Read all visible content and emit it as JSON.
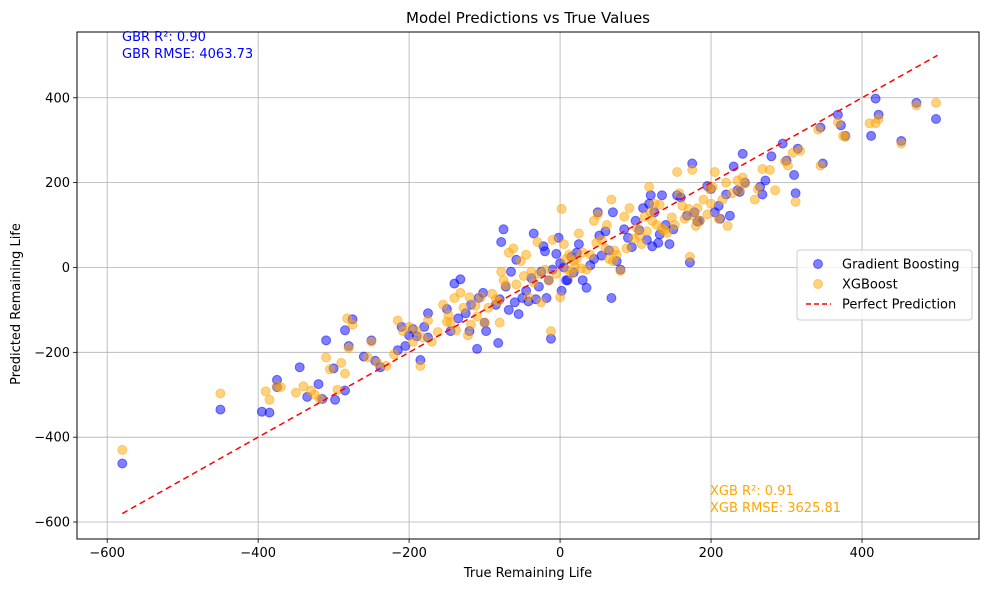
{
  "chart_data": {
    "type": "scatter",
    "title": "Model Predictions vs True Values",
    "xlabel": "True Remaining Life",
    "ylabel": "Predicted Remaining Life",
    "xlim": [
      -640,
      555
    ],
    "ylim": [
      -640,
      555
    ],
    "xticks": [
      -600,
      -400,
      -200,
      0,
      200,
      400
    ],
    "yticks": [
      -600,
      -400,
      -200,
      0,
      200,
      400
    ],
    "tick_labels": [
      "−600",
      "−400",
      "−200",
      "0",
      "200",
      "400"
    ],
    "grid": true,
    "legend_placement": "center-right",
    "series": [
      {
        "name": "Gradient Boosting",
        "color": "#0000ff",
        "points": [
          [
            -580,
            -462
          ],
          [
            -450,
            -335
          ],
          [
            -395,
            -340
          ],
          [
            -385,
            -342
          ],
          [
            -375,
            -265
          ],
          [
            -375,
            -282
          ],
          [
            -345,
            -235
          ],
          [
            -335,
            -305
          ],
          [
            -320,
            -275
          ],
          [
            -315,
            -310
          ],
          [
            -310,
            -172
          ],
          [
            -300,
            -238
          ],
          [
            -298,
            -312
          ],
          [
            -285,
            -290
          ],
          [
            -285,
            -148
          ],
          [
            -280,
            -185
          ],
          [
            -275,
            -122
          ],
          [
            -260,
            -210
          ],
          [
            -250,
            -172
          ],
          [
            -245,
            -220
          ],
          [
            -238,
            -235
          ],
          [
            -215,
            -195
          ],
          [
            -210,
            -140
          ],
          [
            -205,
            -185
          ],
          [
            -200,
            -160
          ],
          [
            -195,
            -145
          ],
          [
            -190,
            -162
          ],
          [
            -185,
            -218
          ],
          [
            -180,
            -140
          ],
          [
            -175,
            -165
          ],
          [
            -175,
            -108
          ],
          [
            -150,
            -98
          ],
          [
            -145,
            -150
          ],
          [
            -140,
            -38
          ],
          [
            -135,
            -120
          ],
          [
            -132,
            -28
          ],
          [
            -125,
            -108
          ],
          [
            -120,
            -150
          ],
          [
            -118,
            -88
          ],
          [
            -110,
            -192
          ],
          [
            -108,
            -72
          ],
          [
            -102,
            -60
          ],
          [
            -100,
            -130
          ],
          [
            -98,
            -150
          ],
          [
            -85,
            -88
          ],
          [
            -82,
            -178
          ],
          [
            -80,
            -75
          ],
          [
            -78,
            60
          ],
          [
            -75,
            90
          ],
          [
            -72,
            -45
          ],
          [
            -68,
            -100
          ],
          [
            -65,
            -10
          ],
          [
            -60,
            -82
          ],
          [
            -58,
            18
          ],
          [
            -55,
            -110
          ],
          [
            -50,
            -72
          ],
          [
            -45,
            -55
          ],
          [
            -42,
            -80
          ],
          [
            -38,
            -25
          ],
          [
            -35,
            80
          ],
          [
            -32,
            -75
          ],
          [
            -28,
            -45
          ],
          [
            -25,
            -10
          ],
          [
            -22,
            50
          ],
          [
            -20,
            38
          ],
          [
            -18,
            -72
          ],
          [
            -15,
            -30
          ],
          [
            -12,
            -168
          ],
          [
            -10,
            -5
          ],
          [
            -5,
            32
          ],
          [
            -2,
            70
          ],
          [
            0,
            10
          ],
          [
            2,
            -55
          ],
          [
            5,
            0
          ],
          [
            8,
            -30
          ],
          [
            10,
            -30
          ],
          [
            15,
            25
          ],
          [
            18,
            -12
          ],
          [
            22,
            35
          ],
          [
            25,
            55
          ],
          [
            30,
            -30
          ],
          [
            35,
            -48
          ],
          [
            40,
            5
          ],
          [
            45,
            20
          ],
          [
            50,
            130
          ],
          [
            52,
            75
          ],
          [
            55,
            28
          ],
          [
            60,
            85
          ],
          [
            65,
            40
          ],
          [
            68,
            -72
          ],
          [
            70,
            130
          ],
          [
            75,
            15
          ],
          [
            80,
            -5
          ],
          [
            85,
            90
          ],
          [
            90,
            70
          ],
          [
            95,
            48
          ],
          [
            100,
            110
          ],
          [
            105,
            88
          ],
          [
            110,
            140
          ],
          [
            115,
            65
          ],
          [
            118,
            150
          ],
          [
            120,
            170
          ],
          [
            122,
            50
          ],
          [
            125,
            130
          ],
          [
            130,
            58
          ],
          [
            132,
            78
          ],
          [
            135,
            170
          ],
          [
            140,
            100
          ],
          [
            145,
            55
          ],
          [
            150,
            90
          ],
          [
            155,
            170
          ],
          [
            160,
            165
          ],
          [
            168,
            122
          ],
          [
            172,
            12
          ],
          [
            175,
            245
          ],
          [
            178,
            130
          ],
          [
            182,
            108
          ],
          [
            185,
            110
          ],
          [
            195,
            192
          ],
          [
            200,
            185
          ],
          [
            205,
            130
          ],
          [
            210,
            145
          ],
          [
            212,
            115
          ],
          [
            220,
            172
          ],
          [
            225,
            122
          ],
          [
            230,
            238
          ],
          [
            235,
            182
          ],
          [
            238,
            178
          ],
          [
            242,
            268
          ],
          [
            245,
            200
          ],
          [
            265,
            190
          ],
          [
            268,
            172
          ],
          [
            272,
            205
          ],
          [
            280,
            262
          ],
          [
            295,
            292
          ],
          [
            300,
            252
          ],
          [
            310,
            218
          ],
          [
            312,
            175
          ],
          [
            315,
            280
          ],
          [
            345,
            330
          ],
          [
            348,
            245
          ],
          [
            368,
            360
          ],
          [
            372,
            335
          ],
          [
            378,
            310
          ],
          [
            412,
            310
          ],
          [
            418,
            398
          ],
          [
            422,
            360
          ],
          [
            452,
            298
          ],
          [
            472,
            388
          ],
          [
            498,
            350
          ]
        ]
      },
      {
        "name": "XGBoost",
        "color": "#ffa500",
        "points": [
          [
            -580,
            -430
          ],
          [
            -450,
            -297
          ],
          [
            -390,
            -292
          ],
          [
            -385,
            -312
          ],
          [
            -375,
            -280
          ],
          [
            -370,
            -282
          ],
          [
            -350,
            -295
          ],
          [
            -340,
            -280
          ],
          [
            -330,
            -290
          ],
          [
            -325,
            -300
          ],
          [
            -318,
            -310
          ],
          [
            -310,
            -212
          ],
          [
            -305,
            -240
          ],
          [
            -295,
            -288
          ],
          [
            -290,
            -225
          ],
          [
            -285,
            -250
          ],
          [
            -282,
            -120
          ],
          [
            -280,
            -190
          ],
          [
            -275,
            -135
          ],
          [
            -255,
            -212
          ],
          [
            -250,
            -175
          ],
          [
            -242,
            -225
          ],
          [
            -230,
            -232
          ],
          [
            -220,
            -205
          ],
          [
            -215,
            -125
          ],
          [
            -208,
            -150
          ],
          [
            -200,
            -140
          ],
          [
            -195,
            -175
          ],
          [
            -190,
            -150
          ],
          [
            -185,
            -232
          ],
          [
            -182,
            -165
          ],
          [
            -175,
            -125
          ],
          [
            -170,
            -175
          ],
          [
            -162,
            -152
          ],
          [
            -155,
            -88
          ],
          [
            -150,
            -128
          ],
          [
            -148,
            -112
          ],
          [
            -145,
            -130
          ],
          [
            -140,
            -72
          ],
          [
            -138,
            -148
          ],
          [
            -132,
            -60
          ],
          [
            -128,
            -95
          ],
          [
            -122,
            -160
          ],
          [
            -120,
            -70
          ],
          [
            -118,
            -135
          ],
          [
            -112,
            -90
          ],
          [
            -110,
            -115
          ],
          [
            -105,
            -70
          ],
          [
            -100,
            -130
          ],
          [
            -95,
            -95
          ],
          [
            -90,
            -62
          ],
          [
            -85,
            -75
          ],
          [
            -82,
            -80
          ],
          [
            -80,
            -130
          ],
          [
            -78,
            -10
          ],
          [
            -75,
            -30
          ],
          [
            -72,
            -42
          ],
          [
            -68,
            35
          ],
          [
            -62,
            45
          ],
          [
            -58,
            -40
          ],
          [
            -52,
            15
          ],
          [
            -48,
            -20
          ],
          [
            -45,
            30
          ],
          [
            -42,
            -70
          ],
          [
            -38,
            -10
          ],
          [
            -35,
            -35
          ],
          [
            -30,
            60
          ],
          [
            -28,
            -15
          ],
          [
            -25,
            -82
          ],
          [
            -20,
            -5
          ],
          [
            -15,
            -30
          ],
          [
            -12,
            -150
          ],
          [
            -10,
            65
          ],
          [
            -5,
            -15
          ],
          [
            0,
            -70
          ],
          [
            2,
            138
          ],
          [
            5,
            55
          ],
          [
            8,
            20
          ],
          [
            10,
            -5
          ],
          [
            12,
            30
          ],
          [
            15,
            -15
          ],
          [
            18,
            15
          ],
          [
            20,
            0
          ],
          [
            22,
            20
          ],
          [
            25,
            80
          ],
          [
            28,
            -2
          ],
          [
            30,
            35
          ],
          [
            35,
            -5
          ],
          [
            40,
            30
          ],
          [
            45,
            110
          ],
          [
            48,
            58
          ],
          [
            50,
            125
          ],
          [
            55,
            65
          ],
          [
            60,
            45
          ],
          [
            62,
            100
          ],
          [
            65,
            20
          ],
          [
            68,
            160
          ],
          [
            70,
            15
          ],
          [
            72,
            40
          ],
          [
            75,
            30
          ],
          [
            80,
            -8
          ],
          [
            85,
            120
          ],
          [
            88,
            45
          ],
          [
            92,
            140
          ],
          [
            98,
            68
          ],
          [
            102,
            92
          ],
          [
            105,
            75
          ],
          [
            108,
            55
          ],
          [
            112,
            120
          ],
          [
            115,
            85
          ],
          [
            118,
            190
          ],
          [
            120,
            130
          ],
          [
            122,
            110
          ],
          [
            125,
            150
          ],
          [
            128,
            100
          ],
          [
            132,
            148
          ],
          [
            135,
            92
          ],
          [
            138,
            88
          ],
          [
            142,
            82
          ],
          [
            148,
            118
          ],
          [
            152,
            100
          ],
          [
            155,
            225
          ],
          [
            158,
            175
          ],
          [
            162,
            145
          ],
          [
            165,
            115
          ],
          [
            170,
            138
          ],
          [
            172,
            25
          ],
          [
            175,
            230
          ],
          [
            178,
            120
          ],
          [
            180,
            98
          ],
          [
            182,
            140
          ],
          [
            185,
            110
          ],
          [
            190,
            160
          ],
          [
            195,
            125
          ],
          [
            198,
            185
          ],
          [
            200,
            150
          ],
          [
            202,
            190
          ],
          [
            205,
            225
          ],
          [
            210,
            115
          ],
          [
            215,
            160
          ],
          [
            220,
            200
          ],
          [
            222,
            98
          ],
          [
            228,
            175
          ],
          [
            235,
            205
          ],
          [
            238,
            182
          ],
          [
            242,
            212
          ],
          [
            245,
            198
          ],
          [
            258,
            160
          ],
          [
            262,
            185
          ],
          [
            268,
            232
          ],
          [
            278,
            230
          ],
          [
            285,
            182
          ],
          [
            298,
            250
          ],
          [
            302,
            240
          ],
          [
            308,
            270
          ],
          [
            312,
            155
          ],
          [
            318,
            275
          ],
          [
            342,
            325
          ],
          [
            345,
            240
          ],
          [
            368,
            342
          ],
          [
            375,
            310
          ],
          [
            378,
            308
          ],
          [
            410,
            340
          ],
          [
            418,
            340
          ],
          [
            422,
            350
          ],
          [
            452,
            292
          ],
          [
            472,
            382
          ],
          [
            498,
            388
          ]
        ]
      }
    ],
    "reference_line": {
      "name": "Perfect Prediction",
      "color": "#ff0000",
      "from": [
        -580,
        -580
      ],
      "to": [
        500,
        500
      ]
    },
    "annotations": [
      {
        "text": "GBR R²: 0.90",
        "color": "#0000ff",
        "corner": "top-left"
      },
      {
        "text": "GBR RMSE: 4063.73",
        "color": "#0000ff",
        "corner": "top-left"
      },
      {
        "text": "XGB R²: 0.91",
        "color": "#ffa500",
        "corner": "bottom-right"
      },
      {
        "text": "XGB RMSE: 3625.81",
        "color": "#ffa500",
        "corner": "bottom-right"
      }
    ]
  }
}
